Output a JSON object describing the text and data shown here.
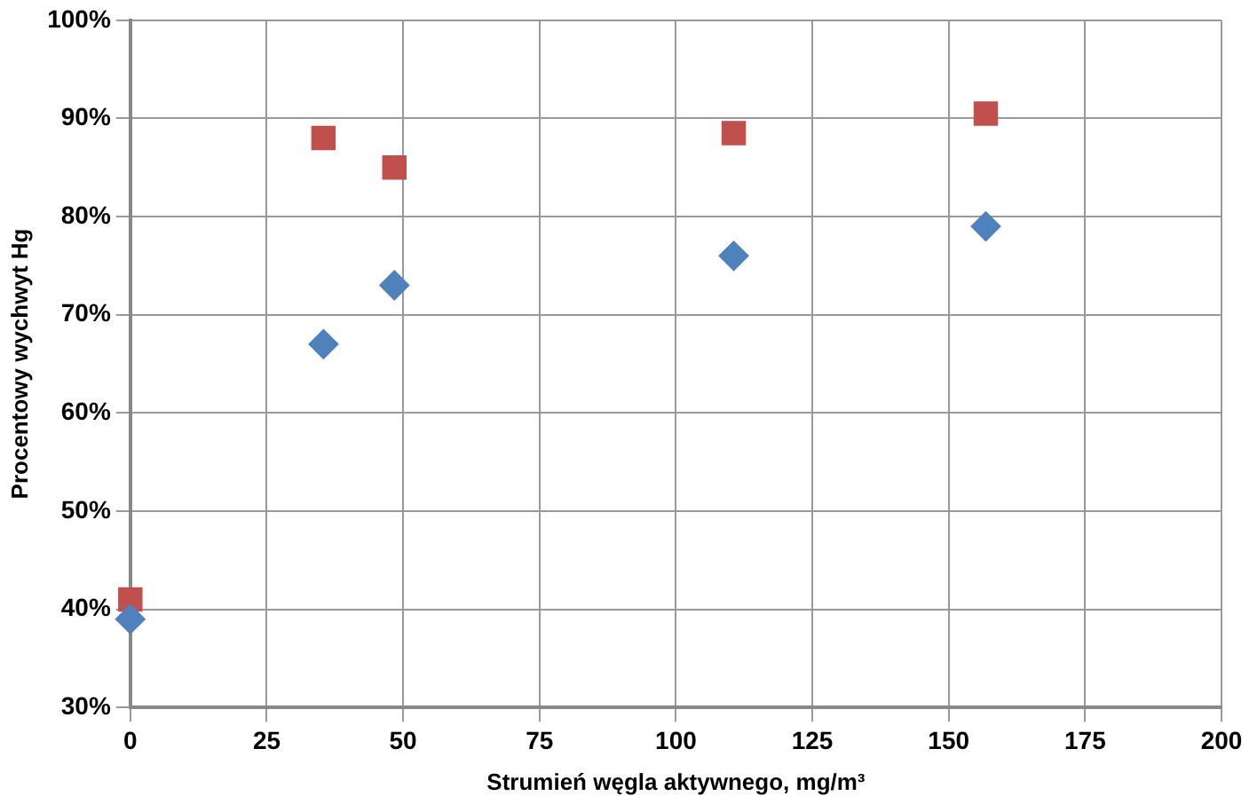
{
  "chart_data": {
    "type": "scatter",
    "xlabel": "Strumień węgla aktywnego, mg/m³",
    "ylabel": "Procentowy wychwyt Hg",
    "x": [
      0,
      35.4,
      48.4,
      110.6,
      156.8
    ],
    "series": [
      {
        "color": "#4f81bd",
        "marker": "diamond",
        "values": [
          39,
          67,
          73,
          76,
          79
        ]
      },
      {
        "color": "#c0504d",
        "marker": "square",
        "values": [
          41,
          88,
          85,
          88.5,
          90.5
        ]
      }
    ],
    "xlim": [
      0,
      200
    ],
    "xticks": [
      0,
      25,
      50,
      75,
      100,
      125,
      150,
      175,
      200
    ],
    "ylim": [
      30,
      100
    ],
    "yticks": [
      {
        "value": 30,
        "label": "30%"
      },
      {
        "value": 40,
        "label": "40%"
      },
      {
        "value": 50,
        "label": "50%"
      },
      {
        "value": 60,
        "label": "60%"
      },
      {
        "value": 70,
        "label": "70%"
      },
      {
        "value": 80,
        "label": "80%"
      },
      {
        "value": 90,
        "label": "90%"
      },
      {
        "value": 100,
        "label": "100%"
      }
    ],
    "grid": true,
    "legend": false
  }
}
